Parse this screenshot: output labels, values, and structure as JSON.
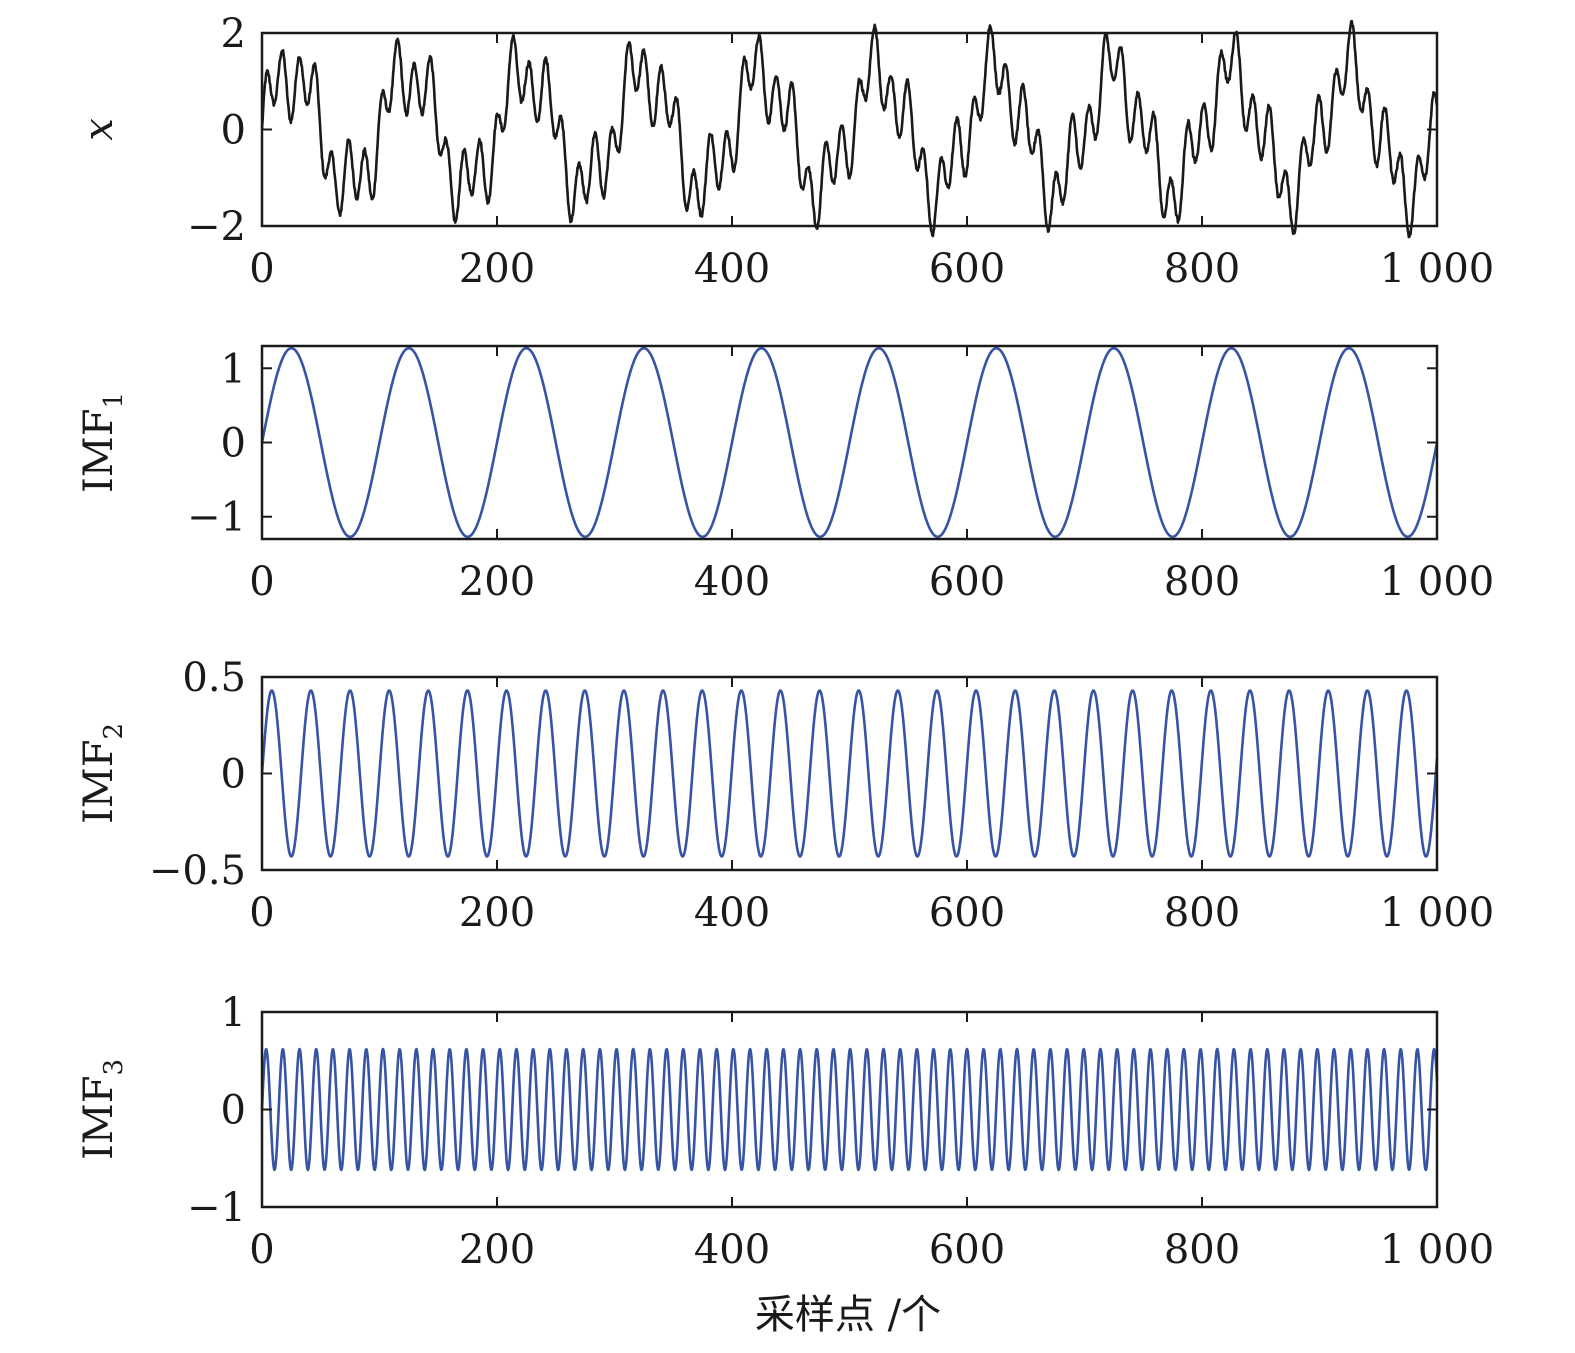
{
  "xlabel": "采样点 /个",
  "chart_data": [
    {
      "type": "line",
      "ylabel": "x",
      "ylabel_sub": "",
      "xlim": [
        0,
        1000
      ],
      "ylim": [
        -2,
        2
      ],
      "xticks": [
        0,
        200,
        400,
        600,
        800,
        1000
      ],
      "xtick_labels": [
        "0",
        "200",
        "400",
        "600",
        "800",
        "1 000"
      ],
      "yticks": [
        -2,
        0,
        2
      ],
      "ytick_labels": [
        "−2",
        "0",
        "2"
      ],
      "color": "#1a1a1a",
      "series": [
        {
          "name": "x",
          "components": [
            {
              "amplitude": 1.2,
              "period": 100
            },
            {
              "amplitude": 0.43,
              "period": 34
            },
            {
              "amplitude": 0.6,
              "period": 14
            }
          ],
          "noise_amplitude": 0.05
        }
      ]
    },
    {
      "type": "line",
      "ylabel": "IMF",
      "ylabel_sub": "1",
      "xlim": [
        0,
        1000
      ],
      "ylim": [
        -1.3,
        1.3
      ],
      "xticks": [
        0,
        200,
        400,
        600,
        800,
        1000
      ],
      "xtick_labels": [
        "0",
        "200",
        "400",
        "600",
        "800",
        "1 000"
      ],
      "yticks": [
        -1,
        0,
        1
      ],
      "ytick_labels": [
        "−1",
        "0",
        "1"
      ],
      "color": "#3753a4",
      "series": [
        {
          "name": "IMF1",
          "amplitude": 1.27,
          "period": 100
        }
      ]
    },
    {
      "type": "line",
      "ylabel": "IMF",
      "ylabel_sub": "2",
      "xlim": [
        0,
        1000
      ],
      "ylim": [
        -0.5,
        0.5
      ],
      "xticks": [
        0,
        200,
        400,
        600,
        800,
        1000
      ],
      "xtick_labels": [
        "0",
        "200",
        "400",
        "600",
        "800",
        "1 000"
      ],
      "yticks": [
        -0.5,
        0,
        0.5
      ],
      "ytick_labels": [
        "−0.5",
        "0",
        "0.5"
      ],
      "color": "#3753a4",
      "series": [
        {
          "name": "IMF2",
          "amplitude": 0.43,
          "period": 33.3
        }
      ]
    },
    {
      "type": "line",
      "ylabel": "IMF",
      "ylabel_sub": "3",
      "xlim": [
        0,
        1000
      ],
      "ylim": [
        -1,
        1
      ],
      "xticks": [
        0,
        200,
        400,
        600,
        800,
        1000
      ],
      "xtick_labels": [
        "0",
        "200",
        "400",
        "600",
        "800",
        "1 000"
      ],
      "yticks": [
        -1,
        0,
        1
      ],
      "ytick_labels": [
        "−1",
        "0",
        "1"
      ],
      "color": "#3753a4",
      "series": [
        {
          "name": "IMF3",
          "amplitude": 0.62,
          "period": 14.2
        }
      ]
    }
  ]
}
